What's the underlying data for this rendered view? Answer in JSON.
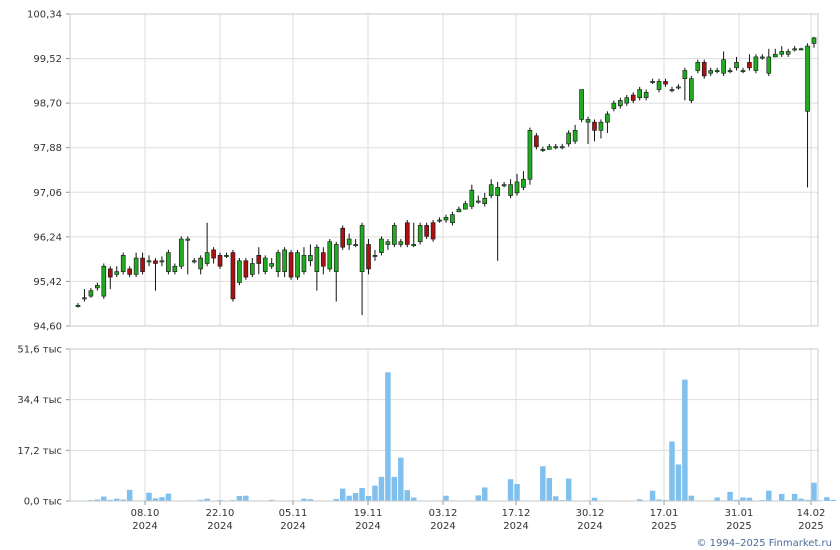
{
  "chart_data": [
    {
      "type": "candlestick",
      "title": "",
      "xlabel": "",
      "ylabel": "",
      "ylim": [
        94.6,
        100.34
      ],
      "y_ticks": [
        "100,34",
        "99,52",
        "98,70",
        "97,88",
        "97,06",
        "96,24",
        "95,42",
        "94,60"
      ],
      "x_ticks": [
        {
          "day": "08.10",
          "year": "2024"
        },
        {
          "day": "22.10",
          "year": "2024"
        },
        {
          "day": "05.11",
          "year": "2024"
        },
        {
          "day": "19.11",
          "year": "2024"
        },
        {
          "day": "03.12",
          "year": "2024"
        },
        {
          "day": "17.12",
          "year": "2024"
        },
        {
          "day": "30.12",
          "year": "2024"
        },
        {
          "day": "17.01",
          "year": "2025"
        },
        {
          "day": "31.01",
          "year": "2025"
        },
        {
          "day": "14.02",
          "year": "2025"
        }
      ],
      "grid": true,
      "up_color": "#22aa22",
      "down_color": "#aa1111",
      "candles": [
        [
          94.98,
          94.98,
          95.02,
          94.94
        ],
        [
          95.12,
          95.12,
          95.28,
          95.05
        ],
        [
          95.15,
          95.25,
          95.3,
          95.12
        ],
        [
          95.3,
          95.35,
          95.4,
          95.25
        ],
        [
          95.15,
          95.7,
          95.75,
          95.1
        ],
        [
          95.65,
          95.5,
          95.7,
          95.28
        ],
        [
          95.55,
          95.6,
          95.7,
          95.5
        ],
        [
          95.6,
          95.9,
          95.95,
          95.55
        ],
        [
          95.65,
          95.55,
          95.7,
          95.5
        ],
        [
          95.55,
          95.85,
          95.95,
          95.5
        ],
        [
          95.85,
          95.6,
          95.95,
          95.55
        ],
        [
          95.8,
          95.8,
          95.9,
          95.7
        ],
        [
          95.8,
          95.75,
          95.85,
          95.25
        ],
        [
          95.8,
          95.8,
          95.88,
          95.7
        ],
        [
          95.6,
          95.95,
          96.0,
          95.55
        ],
        [
          95.6,
          95.7,
          95.75,
          95.55
        ],
        [
          95.7,
          96.2,
          96.25,
          95.65
        ],
        [
          96.2,
          96.2,
          96.25,
          95.55
        ],
        [
          95.8,
          95.8,
          95.85,
          95.75
        ],
        [
          95.65,
          95.85,
          95.9,
          95.55
        ],
        [
          95.75,
          95.95,
          96.5,
          95.7
        ],
        [
          96.0,
          95.85,
          96.05,
          95.75
        ],
        [
          95.9,
          95.7,
          95.95,
          95.65
        ],
        [
          95.9,
          95.9,
          95.95,
          95.85
        ],
        [
          95.95,
          95.1,
          96.0,
          95.05
        ],
        [
          95.4,
          95.8,
          95.85,
          95.35
        ],
        [
          95.8,
          95.5,
          95.85,
          95.45
        ],
        [
          95.55,
          95.75,
          95.85,
          95.5
        ],
        [
          95.9,
          95.75,
          96.05,
          95.55
        ],
        [
          95.6,
          95.85,
          95.9,
          95.55
        ],
        [
          95.7,
          95.75,
          95.85,
          95.65
        ],
        [
          95.6,
          95.95,
          96.0,
          95.5
        ],
        [
          95.6,
          96.0,
          96.05,
          95.5
        ],
        [
          95.95,
          95.5,
          96.0,
          95.45
        ],
        [
          95.5,
          95.95,
          96.0,
          95.45
        ],
        [
          95.6,
          95.9,
          96.05,
          95.55
        ],
        [
          95.8,
          95.9,
          96.1,
          95.7
        ],
        [
          95.6,
          96.05,
          96.1,
          95.25
        ],
        [
          95.95,
          95.7,
          96.05,
          95.55
        ],
        [
          95.65,
          96.15,
          96.2,
          95.6
        ],
        [
          95.6,
          96.1,
          96.15,
          95.05
        ],
        [
          96.4,
          96.05,
          96.45,
          96.0
        ],
        [
          96.1,
          96.2,
          96.3,
          96.0
        ],
        [
          96.1,
          96.1,
          96.2,
          96.05
        ],
        [
          95.6,
          96.45,
          96.5,
          94.8
        ],
        [
          96.1,
          95.65,
          96.2,
          95.55
        ],
        [
          95.9,
          95.9,
          96.0,
          95.8
        ],
        [
          95.95,
          96.2,
          96.25,
          95.9
        ],
        [
          96.1,
          96.15,
          96.2,
          96.0
        ],
        [
          96.1,
          96.45,
          96.5,
          96.05
        ],
        [
          96.1,
          96.15,
          96.2,
          96.05
        ],
        [
          96.5,
          96.1,
          96.55,
          96.05
        ],
        [
          96.1,
          96.1,
          96.5,
          96.05
        ],
        [
          96.15,
          96.45,
          96.5,
          96.1
        ],
        [
          96.45,
          96.25,
          96.5,
          96.2
        ],
        [
          96.5,
          96.2,
          96.55,
          96.15
        ],
        [
          96.55,
          96.55,
          96.6,
          96.5
        ],
        [
          96.55,
          96.6,
          96.65,
          96.5
        ],
        [
          96.5,
          96.65,
          96.7,
          96.45
        ],
        [
          96.7,
          96.75,
          96.8,
          96.7
        ],
        [
          96.75,
          96.85,
          96.9,
          96.75
        ],
        [
          96.8,
          97.1,
          97.2,
          96.75
        ],
        [
          96.9,
          96.9,
          97.0,
          96.85
        ],
        [
          96.85,
          96.95,
          97.05,
          96.8
        ],
        [
          97.0,
          97.2,
          97.3,
          96.95
        ],
        [
          97.0,
          97.15,
          97.25,
          95.8
        ],
        [
          97.2,
          97.2,
          97.25,
          97.15
        ],
        [
          97.0,
          97.2,
          97.3,
          96.95
        ],
        [
          97.05,
          97.25,
          97.4,
          97.0
        ],
        [
          97.15,
          97.3,
          97.45,
          97.1
        ],
        [
          97.3,
          98.2,
          98.25,
          97.2
        ],
        [
          98.1,
          97.9,
          98.15,
          97.85
        ],
        [
          97.85,
          97.85,
          97.9,
          97.8
        ],
        [
          97.85,
          97.9,
          97.95,
          97.85
        ],
        [
          97.9,
          97.9,
          97.95,
          97.85
        ],
        [
          97.9,
          97.9,
          97.95,
          97.85
        ],
        [
          97.95,
          98.15,
          98.2,
          97.9
        ],
        [
          98.0,
          98.2,
          98.3,
          97.95
        ],
        [
          98.4,
          98.95,
          98.95,
          98.35
        ],
        [
          98.35,
          98.4,
          98.45,
          97.95
        ],
        [
          98.35,
          98.2,
          98.4,
          98.0
        ],
        [
          98.2,
          98.35,
          98.4,
          98.05
        ],
        [
          98.35,
          98.5,
          98.55,
          98.15
        ],
        [
          98.6,
          98.7,
          98.75,
          98.55
        ],
        [
          98.65,
          98.75,
          98.8,
          98.6
        ],
        [
          98.7,
          98.8,
          98.85,
          98.65
        ],
        [
          98.85,
          98.75,
          98.9,
          98.7
        ],
        [
          98.8,
          98.95,
          99.0,
          98.75
        ],
        [
          98.8,
          98.9,
          98.95,
          98.75
        ],
        [
          99.1,
          99.1,
          99.15,
          99.05
        ],
        [
          98.95,
          99.1,
          99.15,
          98.9
        ],
        [
          99.1,
          99.05,
          99.15,
          99.0
        ],
        [
          98.95,
          98.95,
          99.0,
          98.9
        ],
        [
          99.0,
          99.0,
          99.05,
          98.95
        ],
        [
          99.15,
          99.3,
          99.35,
          98.75
        ],
        [
          98.75,
          99.15,
          99.2,
          98.7
        ],
        [
          99.3,
          99.45,
          99.5,
          99.25
        ],
        [
          99.45,
          99.2,
          99.5,
          99.15
        ],
        [
          99.25,
          99.3,
          99.35,
          99.2
        ],
        [
          99.3,
          99.3,
          99.35,
          99.25
        ],
        [
          99.25,
          99.5,
          99.65,
          99.2
        ],
        [
          99.3,
          99.3,
          99.35,
          99.25
        ],
        [
          99.35,
          99.45,
          99.55,
          99.3
        ],
        [
          99.3,
          99.3,
          99.35,
          99.25
        ],
        [
          99.45,
          99.35,
          99.6,
          99.3
        ],
        [
          99.3,
          99.55,
          99.6,
          99.25
        ],
        [
          99.55,
          99.55,
          99.6,
          99.5
        ],
        [
          99.25,
          99.55,
          99.7,
          99.2
        ],
        [
          99.55,
          99.6,
          99.7,
          99.55
        ],
        [
          99.6,
          99.65,
          99.75,
          99.55
        ],
        [
          99.6,
          99.65,
          99.7,
          99.55
        ],
        [
          99.7,
          99.7,
          99.75,
          99.65
        ],
        [
          99.7,
          99.7,
          99.72,
          99.68
        ],
        [
          98.55,
          99.75,
          99.8,
          97.15
        ],
        [
          99.8,
          99.9,
          99.92,
          99.72
        ]
      ]
    },
    {
      "type": "bar",
      "title": "",
      "xlabel": "",
      "ylabel": "",
      "ylim": [
        0,
        51.6
      ],
      "y_ticks": [
        "51,6 тыс",
        "34,4 тыс",
        "17,2 тыс",
        "0,0 тыс"
      ],
      "bar_color": "#7fc0ee",
      "values": [
        0.1,
        0.1,
        0.3,
        0.5,
        1.5,
        0.4,
        0.8,
        0.5,
        3.8,
        0.2,
        0.2,
        2.8,
        0.9,
        1.3,
        2.5,
        0.1,
        0.1,
        0.2,
        0.1,
        0.4,
        0.8,
        0.1,
        0.3,
        0.1,
        0.3,
        1.7,
        1.8,
        0.1,
        0.2,
        0.1,
        0.4,
        0.1,
        0.1,
        0.2,
        0.1,
        0.8,
        0.6,
        0.1,
        0.1,
        0.1,
        0.7,
        4.2,
        1.8,
        2.7,
        4.4,
        1.7,
        5.2,
        8.2,
        43.7,
        8.2,
        14.7,
        3.7,
        1.2,
        0.2,
        0.1,
        0.2,
        0.2,
        1.8,
        0.2,
        0.1,
        0.2,
        0.1,
        1.9,
        4.6,
        0.1,
        0.1,
        0.1,
        7.4,
        5.8,
        0.2,
        0.1,
        0.2,
        11.8,
        7.8,
        1.6,
        0.3,
        7.6,
        0.2,
        0.1,
        0.2,
        1.1,
        0.1,
        0.2,
        0.1,
        0.1,
        0.1,
        0.1,
        0.6,
        0.1,
        3.5,
        0.5,
        0.3,
        20.2,
        12.4,
        41.2,
        1.8,
        0.2,
        0.1,
        0.2,
        1.2,
        0.2,
        3.1,
        0.4,
        1.2,
        1.1,
        0.1,
        0.3,
        3.5,
        0.2,
        2.4,
        0.3,
        2.4,
        0.8,
        0.4,
        6.2,
        0.2,
        1.3,
        0.4
      ]
    }
  ],
  "footer": {
    "copyright": "© 1994–2025 Finmarket.ru"
  }
}
